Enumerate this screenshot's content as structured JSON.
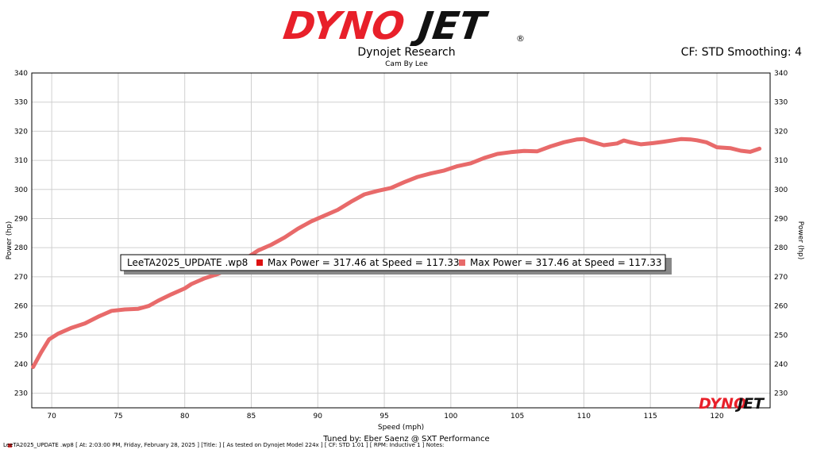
{
  "brand": {
    "logo_text_a": "DYNO",
    "logo_text_b": "JET",
    "registered": "®",
    "colors": {
      "red": "#e8202a",
      "black": "#111111"
    }
  },
  "header": {
    "title": "Dynojet Research",
    "subtitle": "Cam By Lee",
    "cf_smoothing": "CF: STD Smoothing: 4"
  },
  "legend": {
    "run_name": "LeeTA2025_UPDATE .wp8",
    "entries": [
      {
        "label": "Max Power = 317.46 at Speed = 117.33",
        "color": "#dd1111"
      },
      {
        "label": "Max Power = 317.46 at Speed = 117.33",
        "color": "#e86a6a"
      }
    ]
  },
  "footer": {
    "tuned_by": "Tuned by: Eber Saenz @ SXT Performance",
    "run_info": "LeeTA2025_UPDATE .wp8 [ At:  2:03:00 PM, Friday, February 28, 2025 ] [Title:  ]  [ As tested on Dynojet Model 224x ] [ CF: STD 1.01 ] [ RPM: Inductive 1 ] Notes:"
  },
  "chart_data": {
    "type": "line",
    "xlabel": "Speed (mph)",
    "ylabel": "Power (hp)",
    "ylabel_right": "Power (hp)",
    "xlim": [
      68.5,
      124
    ],
    "ylim": [
      225,
      340
    ],
    "xticks": [
      70,
      75,
      80,
      85,
      90,
      95,
      100,
      105,
      110,
      115,
      120
    ],
    "yticks": [
      230,
      240,
      250,
      260,
      270,
      280,
      290,
      300,
      310,
      320,
      330,
      340
    ],
    "grid": true,
    "series": [
      {
        "color": "#e86a6a",
        "x": [
          68.6,
          69.2,
          69.8,
          70.5,
          71.5,
          72.5,
          73.5,
          74.5,
          75.5,
          76.5,
          77.3,
          78,
          79,
          80,
          80.5,
          81.5,
          82.5,
          83.5,
          84.5,
          85.5,
          86.5,
          87.5,
          88.5,
          89.5,
          90.5,
          91.5,
          92.5,
          93.5,
          94.5,
          95.5,
          96.5,
          97.5,
          98.5,
          99.5,
          100.5,
          101.5,
          102.5,
          103.5,
          104.5,
          105.5,
          106.5,
          107.5,
          108.5,
          109.5,
          110,
          110.5,
          111.5,
          112.5,
          113,
          113.5,
          114.3,
          115.2,
          116,
          116.7,
          117.3,
          118,
          118.5,
          119.2,
          120,
          121,
          121.8,
          122.5,
          123.2
        ],
        "y": [
          239,
          244,
          248.5,
          250.5,
          252.5,
          254,
          256.3,
          258.3,
          258.8,
          259,
          260,
          261.8,
          264,
          266,
          267.5,
          269.5,
          271,
          273,
          276,
          279,
          281,
          283.5,
          286.5,
          289,
          291,
          293,
          295.8,
          298.3,
          299.5,
          300.5,
          302.5,
          304.3,
          305.5,
          306.5,
          308,
          309,
          310.8,
          312.2,
          312.8,
          313.2,
          313.1,
          314.8,
          316.2,
          317.2,
          317.3,
          316.5,
          315.2,
          315.8,
          316.8,
          316.2,
          315.5,
          315.9,
          316.4,
          316.9,
          317.3,
          317.2,
          316.9,
          316.2,
          314.5,
          314.2,
          313.3,
          312.9,
          314
        ]
      }
    ]
  }
}
